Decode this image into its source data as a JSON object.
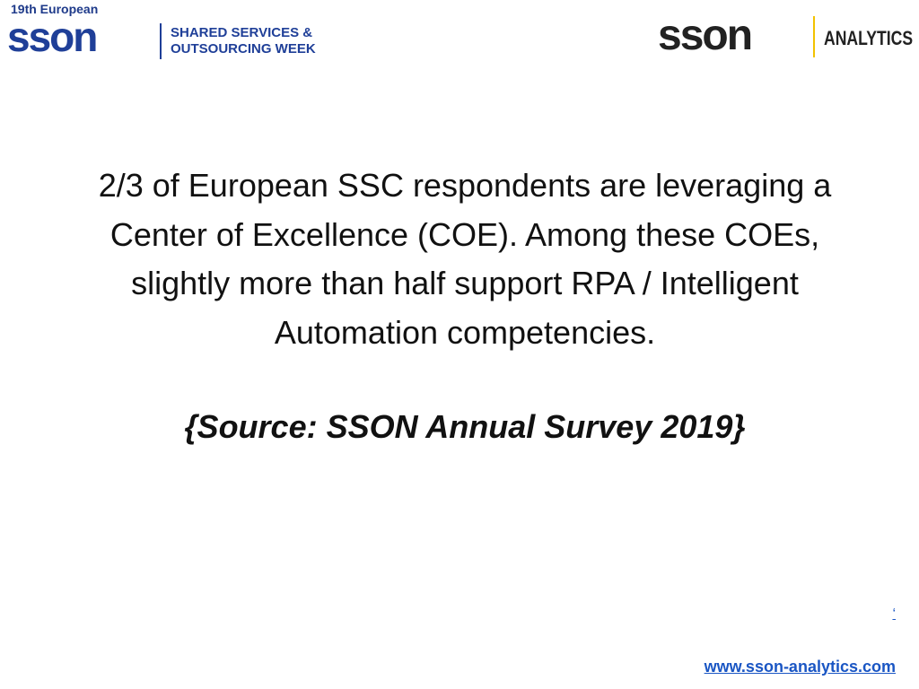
{
  "header": {
    "edition": "19th European",
    "logo_left": "sson",
    "event_lines": [
      "SHARED SERVICES &",
      "OUTSOURCING WEEK"
    ],
    "logo_right": "sson",
    "logo_right_tag": "ANALYTICS"
  },
  "body": {
    "lines": [
      "2/3 of European SSC respondents are leveraging a",
      "Center of Excellence (COE). Among these COEs,",
      "slightly more than half support RPA / Intelligent",
      "Automation competencies."
    ],
    "source": "{Source: SSON Annual Survey 2019}"
  },
  "footer": {
    "mark": "‘",
    "link": "www.sson-analytics.com"
  }
}
